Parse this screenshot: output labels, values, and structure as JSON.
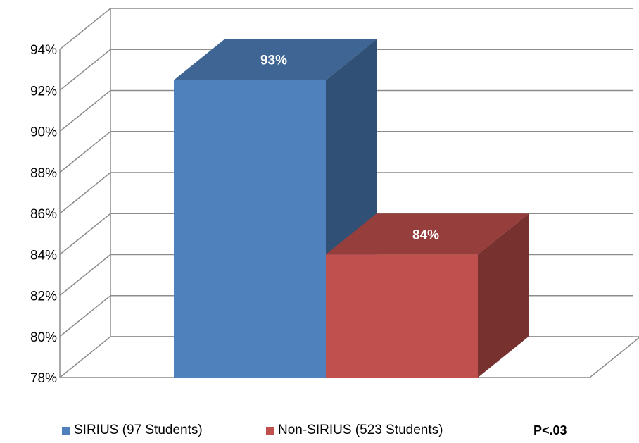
{
  "chart_data": {
    "type": "bar",
    "title": "",
    "xlabel": "",
    "ylabel": "",
    "ylim": [
      78,
      94
    ],
    "yticks": [
      78,
      80,
      82,
      84,
      86,
      88,
      90,
      92,
      94
    ],
    "ytick_labels": [
      "78%",
      "80%",
      "82%",
      "84%",
      "86%",
      "88%",
      "90%",
      "92%",
      "94%"
    ],
    "three_d": true,
    "grid": true,
    "legend_position": "bottom",
    "series": [
      {
        "name": "SIRIUS (97 Students)",
        "value": 92.5,
        "label": "93%",
        "color": "#4F81BD"
      },
      {
        "name": "Non-SIRIUS (523 Students)",
        "value": 84.0,
        "label": "84%",
        "color": "#C0504D"
      }
    ],
    "annotation": "P<.03"
  }
}
